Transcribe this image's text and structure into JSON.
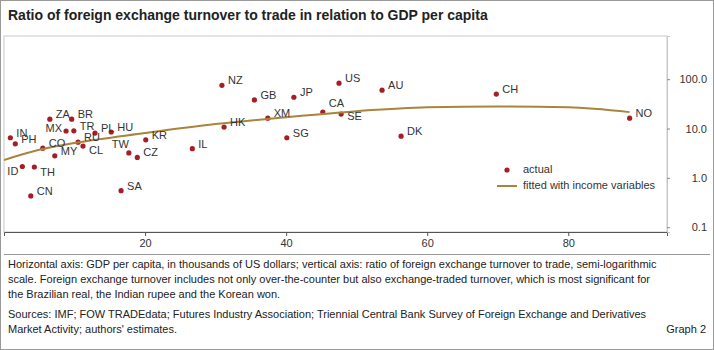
{
  "chart_data": {
    "type": "scatter",
    "title": "Ratio of foreign exchange turnover to trade in relation to GDP per capita",
    "notes": [
      "Horizontal axis: GDP per capita, in thousands of US dollars; vertical axis: ratio of foreign exchange turnover to trade, semi-logarithmic",
      "scale. Foreign exchange turnover includes not only over-the-counter but also exchange-traded turnover, which is most significant for",
      "the Brazilian real, the Indian rupee and the Korean won."
    ],
    "sources": [
      "Sources: IMF; FOW TRADEdata; Futures Industry Association; Triennial Central Bank Survey of Foreign Exchange and Derivatives",
      "Market Activity; authors' estimates."
    ],
    "figure_label": "Graph 2",
    "log": "y",
    "grid": false,
    "legend": "lower right",
    "xlim": [
      0,
      94
    ],
    "xticks": [
      20,
      40,
      60,
      80
    ],
    "ylim": [
      0.08,
      750
    ],
    "yticks": [
      {
        "value": 100,
        "label": "100.0"
      },
      {
        "value": 10,
        "label": "10.0"
      },
      {
        "value": 1,
        "label": "1.0"
      },
      0.1
    ],
    "series": [
      {
        "name": "actual",
        "type": "scatter",
        "marker": "circle",
        "color": "#a51e27",
        "point_labels": [
          "IN",
          "PH",
          "ID",
          "TH",
          "CN",
          "ZA",
          "BR",
          "MX",
          "TR",
          "CO",
          "RU",
          "CL",
          "MY",
          "PL",
          "HU",
          "TW",
          "CZ",
          "KR",
          "SA",
          "IL",
          "HK",
          "NZ",
          "GB",
          "XM",
          "JP",
          "SG",
          "CA",
          "US",
          "SE",
          "AU",
          "DK",
          "CH",
          "NO"
        ],
        "x": [
          0.9,
          1.6,
          2.6,
          4.3,
          3.8,
          6.5,
          9.6,
          8.8,
          9.9,
          5.5,
          10.5,
          11.2,
          7.2,
          12.9,
          15.2,
          17.7,
          18.9,
          20.1,
          16.6,
          26.7,
          31.2,
          30.9,
          35.5,
          37.4,
          41.1,
          40.1,
          45.2,
          47.5,
          47.8,
          53.6,
          56.3,
          69.8,
          88.7
        ],
        "values": [
          6.5,
          4.9,
          1.7,
          1.66,
          0.43,
          15.5,
          15.5,
          8.9,
          9.0,
          4.0,
          5.3,
          4.4,
          2.8,
          8.1,
          8.5,
          3.2,
          2.6,
          5.9,
          0.55,
          3.9,
          10.7,
          75,
          38,
          16.2,
          43,
          6.5,
          21.5,
          83,
          19.6,
          60,
          7.0,
          50,
          16.2
        ]
      },
      {
        "name": "fitted with income variables",
        "type": "line",
        "line_style": "solid",
        "color": "#a9843a",
        "x": [
          0,
          5,
          10,
          20,
          30,
          40,
          50,
          60,
          70,
          80,
          88.7
        ],
        "values": [
          2.3,
          3.7,
          5.1,
          8.1,
          12.3,
          17,
          22.5,
          27,
          28,
          27,
          21.5
        ]
      }
    ]
  }
}
